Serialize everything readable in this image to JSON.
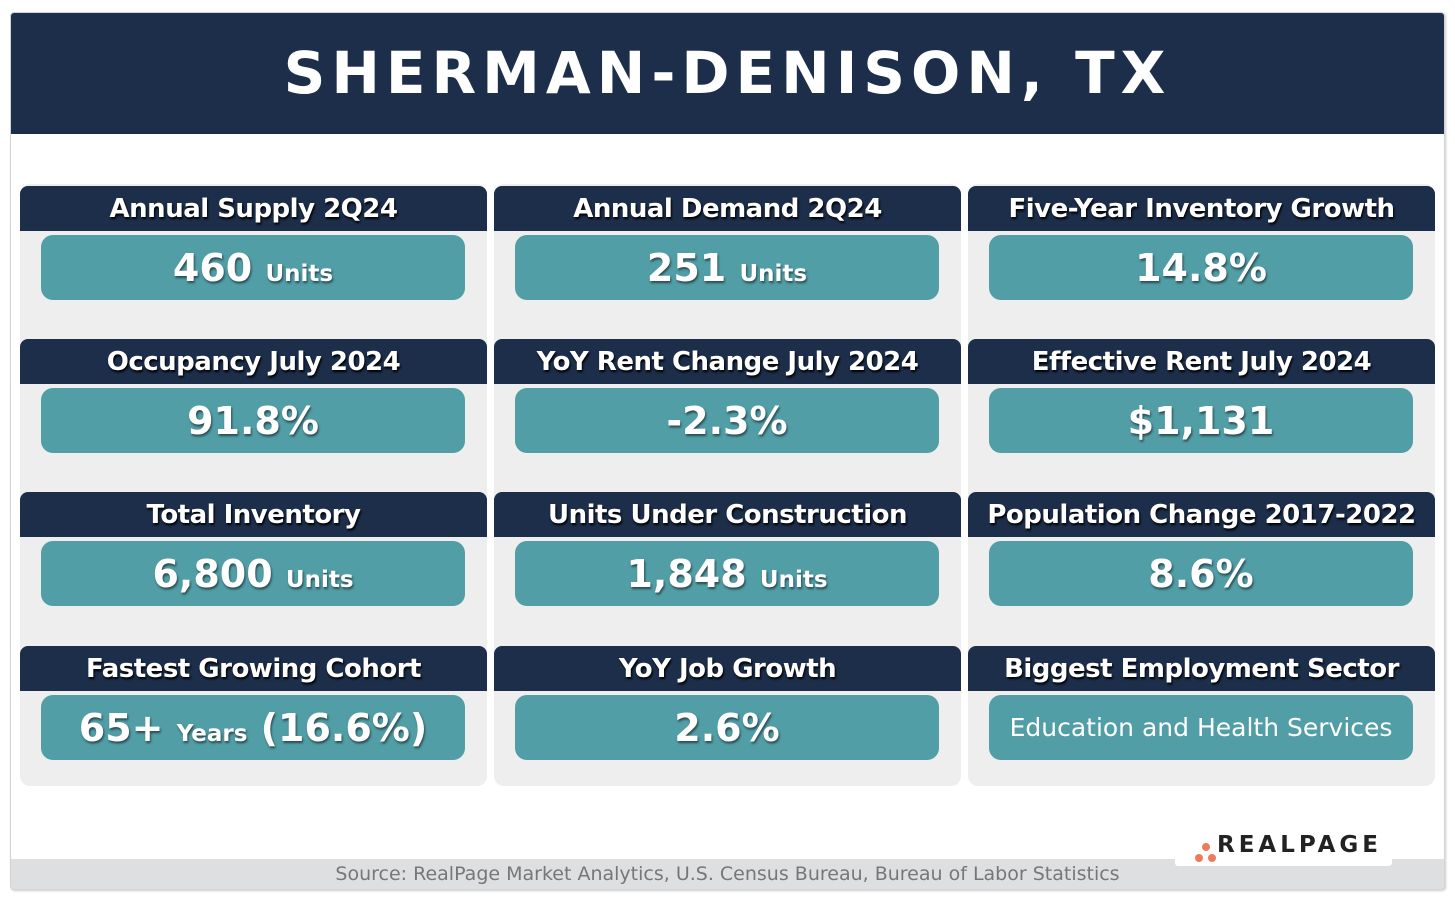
{
  "title": "SHERMAN-DENISON, TX",
  "tiles": [
    {
      "label": "Annual Supply 2Q24",
      "value": "460",
      "unit": "Units"
    },
    {
      "label": "Annual Demand 2Q24",
      "value": "251",
      "unit": "Units"
    },
    {
      "label": "Five-Year Inventory Growth",
      "value": "14.8%",
      "unit": ""
    },
    {
      "label": "Occupancy July 2024",
      "value": "91.8%",
      "unit": ""
    },
    {
      "label": "YoY Rent Change July 2024",
      "value": "-2.3%",
      "unit": ""
    },
    {
      "label": "Effective Rent July 2024",
      "value": "$1,131",
      "unit": ""
    },
    {
      "label": "Total Inventory",
      "value": "6,800",
      "unit": "Units"
    },
    {
      "label": "Units Under Construction",
      "value": "1,848",
      "unit": "Units"
    },
    {
      "label": "Population Change 2017-2022",
      "value": "8.6%",
      "unit": ""
    },
    {
      "label": "Fastest Growing Cohort",
      "value": "65+",
      "unit": "Years",
      "suffix": "(16.6%)"
    },
    {
      "label": "YoY Job Growth",
      "value": "2.6%",
      "unit": ""
    },
    {
      "label": "Biggest Employment Sector",
      "value": "Education and Health Services",
      "unit": ""
    }
  ],
  "source": "Source: RealPage Market Analytics, U.S. Census Bureau, Bureau of Labor Statistics",
  "logo": "REALPAGE",
  "colors": {
    "navy": "#1c2e4a",
    "teal": "#519ea6",
    "panel": "#eeeeee",
    "logo_dot": "#ef7a5a"
  }
}
